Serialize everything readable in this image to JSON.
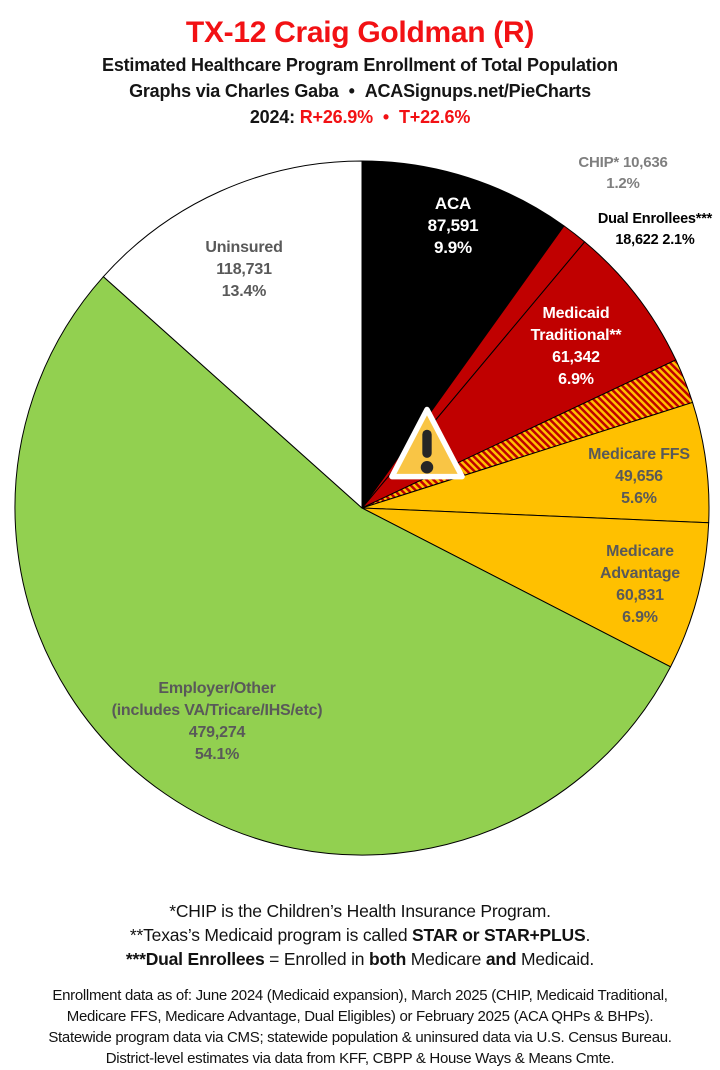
{
  "header": {
    "title": "TX-12 Craig Goldman (R)",
    "title_color": "#f21114",
    "subtitle": "Estimated Healthcare Program Enrollment of Total Population",
    "credit_pre": "Graphs via Charles Gaba",
    "credit_sep": "•",
    "credit_site": "ACASignups.net/PieCharts",
    "lean_year": "2024:",
    "lean_r": "R+26.9%",
    "lean_sep": "•",
    "lean_t": "T+22.6%"
  },
  "chart_data": {
    "type": "pie",
    "title": "Estimated Healthcare Program Enrollment of Total Population",
    "units": "people",
    "start_angle_deg": 0,
    "direction": "clockwise",
    "legend_position": "labels-on-slices",
    "slices": [
      {
        "id": "aca",
        "label": "ACA",
        "value": 87591,
        "pct": 9.9,
        "color": "#000000",
        "label_color": "#ffffff",
        "label_inside": true,
        "label_lines": [
          "ACA",
          "87,591",
          "9.9%"
        ]
      },
      {
        "id": "chip",
        "label": "CHIP",
        "value": 10636,
        "pct": 1.2,
        "color": "#c00000",
        "label_color": "#7f7f7f",
        "label_inside": false,
        "label_lines": [
          "CHIP* 10,636",
          "1.2%"
        ]
      },
      {
        "id": "medicaid",
        "label": "Medicaid Traditional",
        "value": 61342,
        "pct": 6.9,
        "color": "#c00000",
        "label_color": "#ffffff",
        "label_inside": true,
        "label_lines": [
          "Medicaid",
          "Traditional**",
          "61,342",
          "6.9%"
        ]
      },
      {
        "id": "dual",
        "label": "Dual Enrollees",
        "value": 18622,
        "pct": 2.1,
        "color": "hatch",
        "label_color": "#000000",
        "label_inside": false,
        "label_lines": [
          "Dual Enrollees***",
          "18,622 2.1%"
        ]
      },
      {
        "id": "ffs",
        "label": "Medicare FFS",
        "value": 49656,
        "pct": 5.6,
        "color": "#ffc000",
        "label_color": "#595959",
        "label_inside": true,
        "label_lines": [
          "Medicare FFS",
          "49,656",
          "5.6%"
        ]
      },
      {
        "id": "advantage",
        "label": "Medicare Advantage",
        "value": 60831,
        "pct": 6.9,
        "color": "#ffc000",
        "label_color": "#595959",
        "label_inside": true,
        "label_lines": [
          "Medicare",
          "Advantage",
          "60,831",
          "6.9%"
        ]
      },
      {
        "id": "employer",
        "label": "Employer/Other",
        "value": 479274,
        "pct": 54.1,
        "color": "#92d050",
        "label_color": "#595959",
        "label_inside": true,
        "label_lines": [
          "Employer/Other",
          "(includes VA/Tricare/IHS/etc)",
          "479,274",
          "54.1%"
        ]
      },
      {
        "id": "uninsured",
        "label": "Uninsured",
        "value": 118731,
        "pct": 13.4,
        "color": "#ffffff",
        "label_color": "#595959",
        "label_inside": true,
        "label_lines": [
          "Uninsured",
          "118,731",
          "13.4%"
        ]
      }
    ],
    "hatch_colors": [
      "#c00000",
      "#ffc000"
    ],
    "slice_border_color": "#000000",
    "center_icon": "warning-triangle-icon",
    "icon_colors": {
      "triangle": "#f9c545",
      "border": "#ffffff",
      "exclamation": "#262626"
    }
  },
  "footnotes": [
    [
      {
        "t": "*CHIP is the Children’s Health Insurance Program.",
        "b": false
      }
    ],
    [
      {
        "t": "**Texas’s Medicaid program is called ",
        "b": false
      },
      {
        "t": "STAR or STAR+PLUS",
        "b": true
      },
      {
        "t": ".",
        "b": false
      }
    ],
    [
      {
        "t": "***Dual Enrollees",
        "b": true
      },
      {
        "t": " = Enrolled in ",
        "b": false
      },
      {
        "t": "both",
        "b": true
      },
      {
        "t": " Medicare ",
        "b": false
      },
      {
        "t": "and",
        "b": true
      },
      {
        "t": " Medicaid.",
        "b": false
      }
    ]
  ],
  "sources": [
    "Enrollment data as of: June 2024 (Medicaid expansion), March 2025 (CHIP, Medicaid Traditional,",
    "Medicare FFS, Medicare Advantage, Dual Eligibles) or February 2025 (ACA QHPs & BHPs).",
    "Statewide program data via CMS; statewide population & uninsured data via U.S. Census Bureau.",
    "District-level estimates via data from KFF, CBPP & House Ways & Means Cmte."
  ]
}
